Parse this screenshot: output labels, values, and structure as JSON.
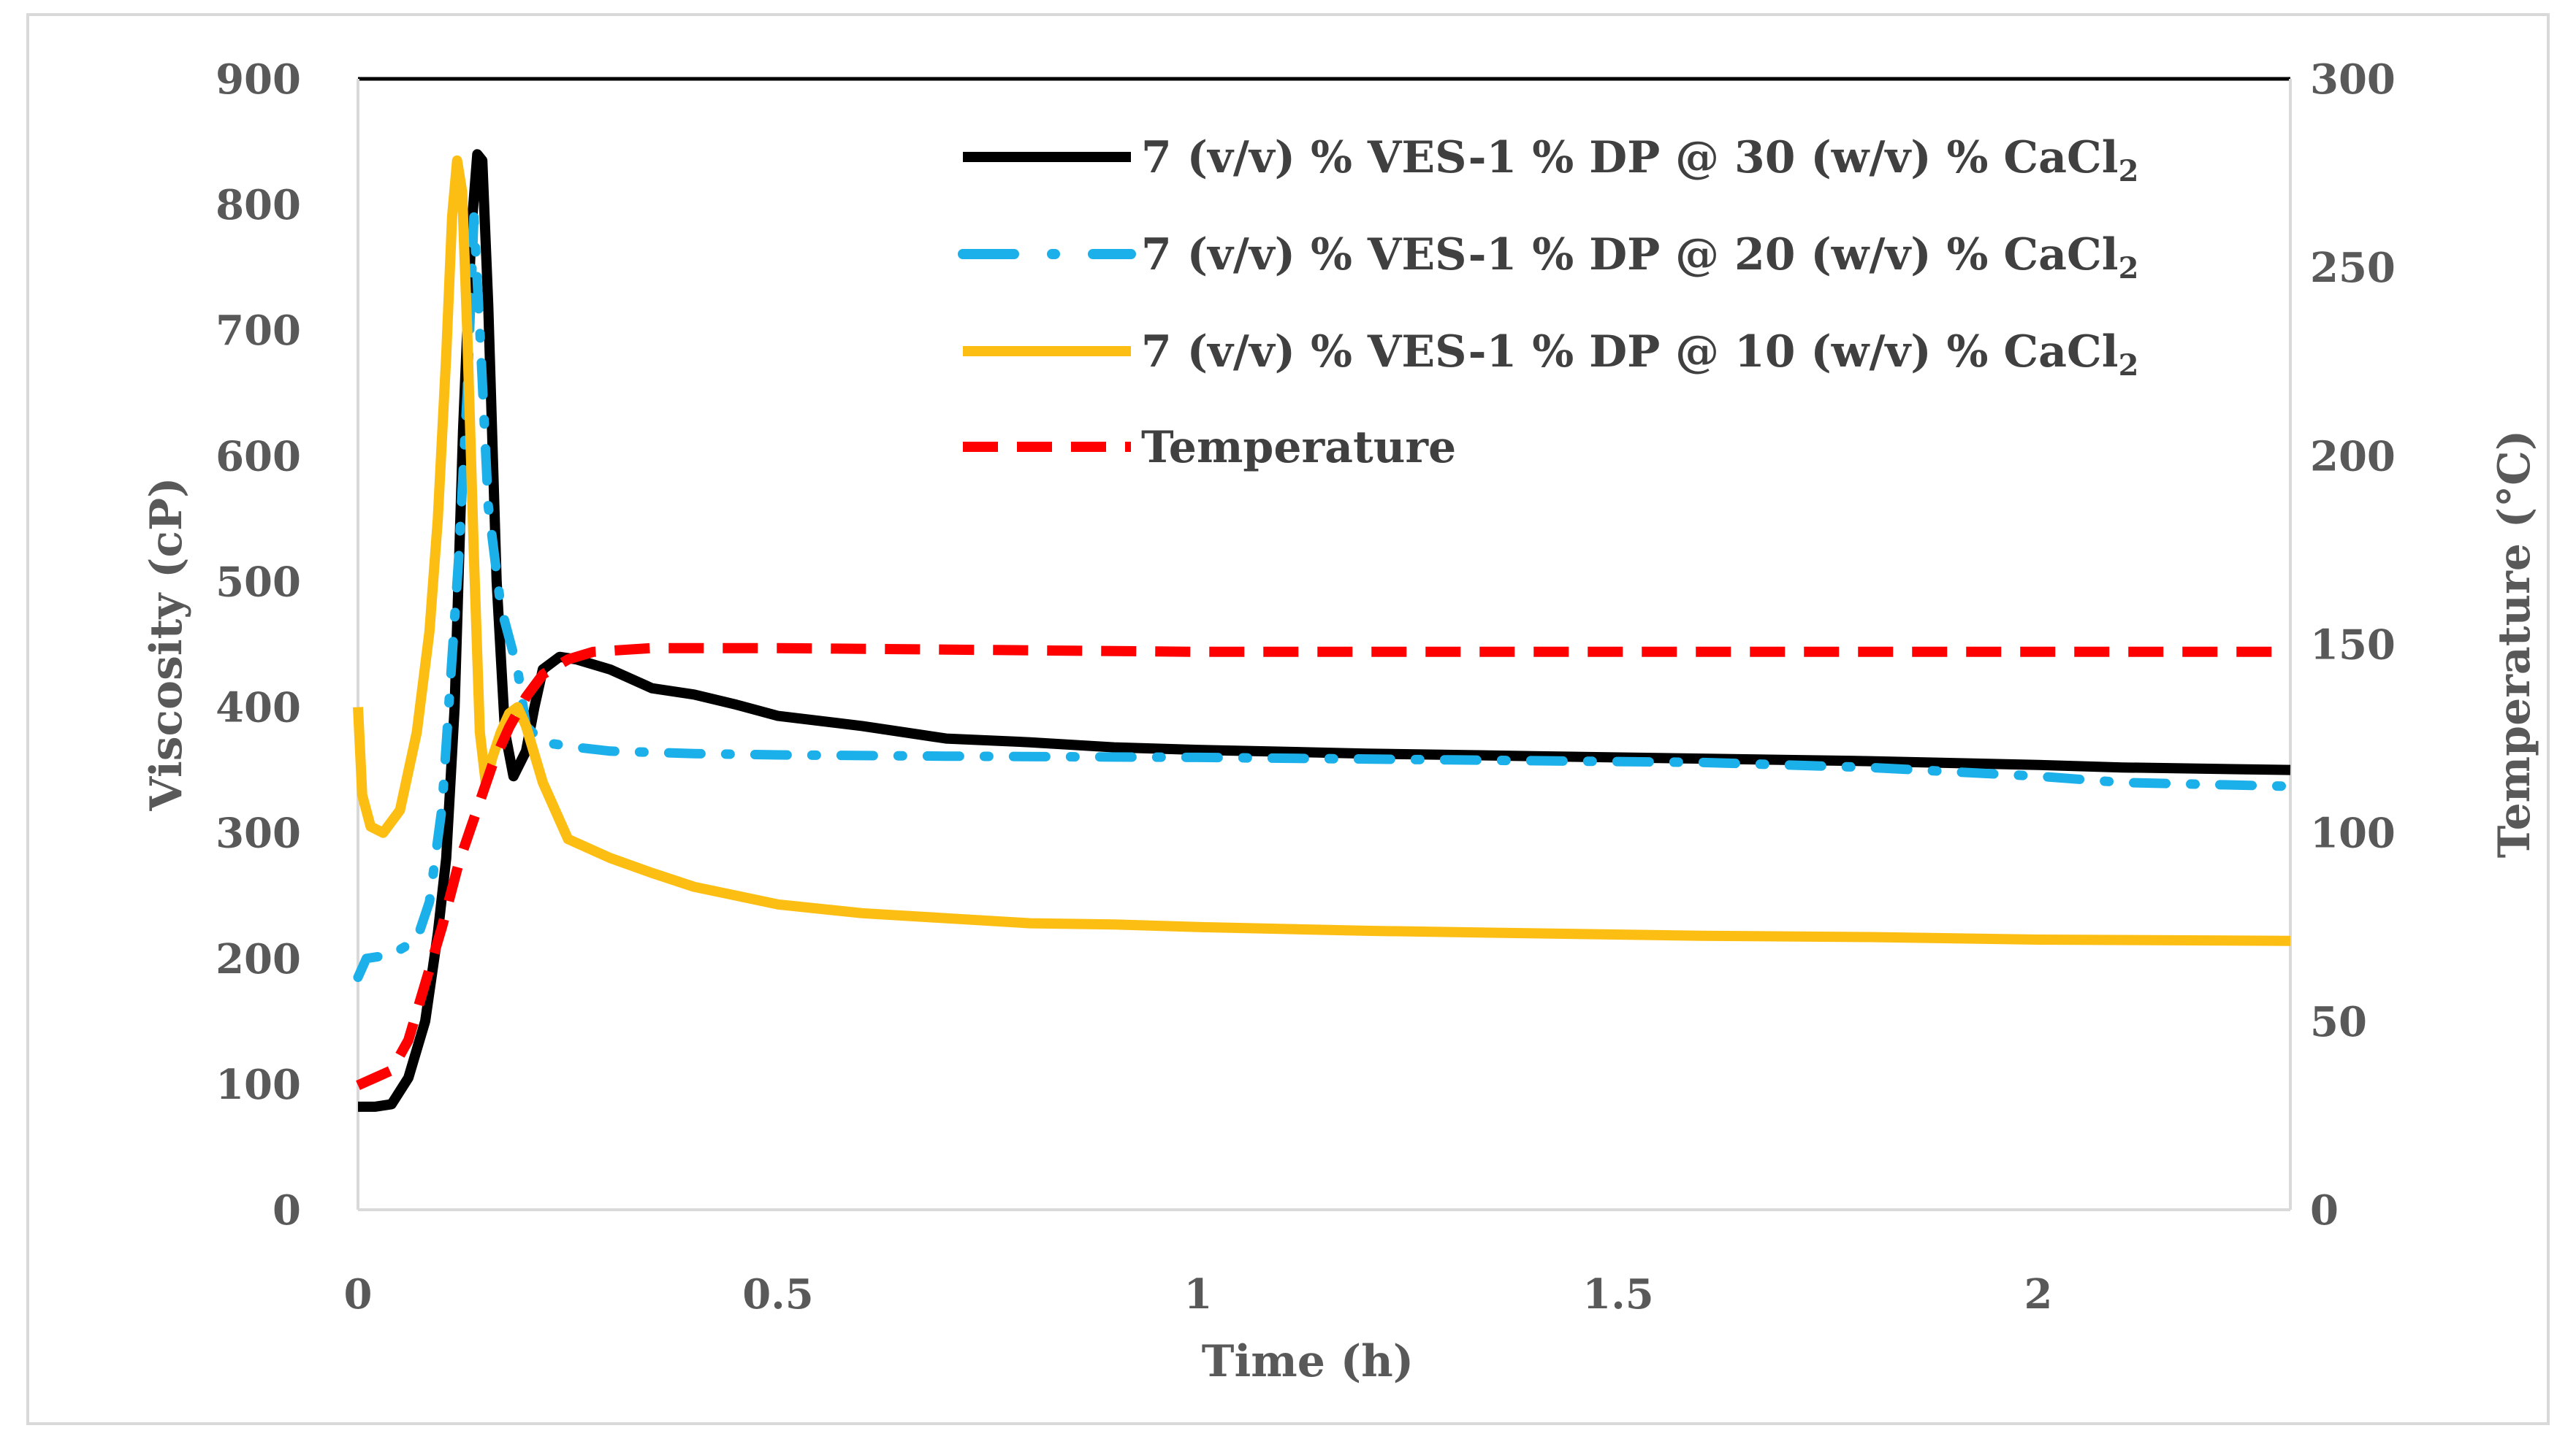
{
  "chart_data": {
    "type": "line",
    "xlabel": "Time (h)",
    "ylabel": "Viscosity (cP)",
    "y2label": "Temperature (°C)",
    "xlim": [
      0,
      2.3
    ],
    "ylim": [
      0,
      900
    ],
    "y2lim": [
      0,
      300
    ],
    "x_ticks": [
      "0",
      "0.5",
      "1",
      "1.5",
      "2"
    ],
    "y_ticks": [
      "0",
      "100",
      "200",
      "300",
      "400",
      "500",
      "600",
      "700",
      "800",
      "900"
    ],
    "y2_ticks": [
      "0",
      "50",
      "100",
      "150",
      "200",
      "250",
      "300"
    ],
    "grid": false,
    "legend_position": "top-right",
    "series": [
      {
        "name": "7 (v/v) % VES-1 % DP @ 30 (w/v) % CaCl",
        "name_subscript": "2",
        "axis": "left",
        "color": "#000000",
        "style": "solid",
        "points": [
          [
            0,
            82
          ],
          [
            0.02,
            82
          ],
          [
            0.04,
            84
          ],
          [
            0.06,
            105
          ],
          [
            0.08,
            150
          ],
          [
            0.095,
            220
          ],
          [
            0.105,
            280
          ],
          [
            0.115,
            400
          ],
          [
            0.125,
            620
          ],
          [
            0.135,
            780
          ],
          [
            0.142,
            840
          ],
          [
            0.148,
            835
          ],
          [
            0.155,
            720
          ],
          [
            0.165,
            500
          ],
          [
            0.175,
            380
          ],
          [
            0.185,
            345
          ],
          [
            0.2,
            365
          ],
          [
            0.21,
            400
          ],
          [
            0.22,
            430
          ],
          [
            0.24,
            440
          ],
          [
            0.26,
            438
          ],
          [
            0.3,
            430
          ],
          [
            0.35,
            415
          ],
          [
            0.4,
            410
          ],
          [
            0.45,
            402
          ],
          [
            0.5,
            393
          ],
          [
            0.6,
            385
          ],
          [
            0.7,
            375
          ],
          [
            0.8,
            372
          ],
          [
            0.9,
            368
          ],
          [
            1.0,
            366
          ],
          [
            1.2,
            363
          ],
          [
            1.4,
            361
          ],
          [
            1.6,
            359
          ],
          [
            1.8,
            357
          ],
          [
            2.0,
            354
          ],
          [
            2.1,
            352
          ],
          [
            2.3,
            350
          ]
        ]
      },
      {
        "name": "7 (v/v) % VES-1 % DP @ 20 (w/v) % CaCl",
        "name_subscript": "2",
        "axis": "left",
        "color": "#1cb0ea",
        "style": "dash-dot",
        "points": [
          [
            0,
            185
          ],
          [
            0.01,
            200
          ],
          [
            0.04,
            203
          ],
          [
            0.07,
            215
          ],
          [
            0.085,
            245
          ],
          [
            0.1,
            320
          ],
          [
            0.11,
            420
          ],
          [
            0.12,
            520
          ],
          [
            0.13,
            650
          ],
          [
            0.138,
            790
          ],
          [
            0.145,
            700
          ],
          [
            0.155,
            560
          ],
          [
            0.17,
            480
          ],
          [
            0.18,
            455
          ],
          [
            0.19,
            430
          ],
          [
            0.2,
            385
          ],
          [
            0.22,
            372
          ],
          [
            0.26,
            368
          ],
          [
            0.3,
            365
          ],
          [
            0.4,
            363
          ],
          [
            0.5,
            362
          ],
          [
            0.7,
            361
          ],
          [
            1.0,
            360
          ],
          [
            1.3,
            358
          ],
          [
            1.6,
            356
          ],
          [
            1.8,
            352
          ],
          [
            2.0,
            345
          ],
          [
            2.1,
            340
          ],
          [
            2.3,
            337
          ]
        ]
      },
      {
        "name": "7 (v/v) % VES-1 % DP @ 10 (w/v) % CaCl",
        "name_subscript": "2",
        "axis": "left",
        "color": "#fdbe14",
        "style": "solid",
        "points": [
          [
            0,
            400
          ],
          [
            0.005,
            330
          ],
          [
            0.015,
            305
          ],
          [
            0.03,
            300
          ],
          [
            0.05,
            318
          ],
          [
            0.07,
            380
          ],
          [
            0.085,
            460
          ],
          [
            0.095,
            550
          ],
          [
            0.105,
            680
          ],
          [
            0.112,
            790
          ],
          [
            0.118,
            835
          ],
          [
            0.124,
            810
          ],
          [
            0.13,
            700
          ],
          [
            0.138,
            520
          ],
          [
            0.145,
            380
          ],
          [
            0.152,
            340
          ],
          [
            0.16,
            360
          ],
          [
            0.17,
            380
          ],
          [
            0.18,
            395
          ],
          [
            0.19,
            400
          ],
          [
            0.2,
            385
          ],
          [
            0.22,
            340
          ],
          [
            0.25,
            295
          ],
          [
            0.3,
            280
          ],
          [
            0.35,
            268
          ],
          [
            0.4,
            257
          ],
          [
            0.45,
            250
          ],
          [
            0.5,
            243
          ],
          [
            0.6,
            236
          ],
          [
            0.7,
            232
          ],
          [
            0.8,
            228
          ],
          [
            0.9,
            227
          ],
          [
            1.0,
            225
          ],
          [
            1.2,
            222
          ],
          [
            1.4,
            220
          ],
          [
            1.6,
            218
          ],
          [
            1.8,
            217
          ],
          [
            2.0,
            215
          ],
          [
            2.3,
            214
          ]
        ]
      },
      {
        "name": "Temperature",
        "axis": "right",
        "color": "#ff0000",
        "style": "dashed",
        "points": [
          [
            0,
            33
          ],
          [
            0.02,
            35
          ],
          [
            0.04,
            37
          ],
          [
            0.06,
            45
          ],
          [
            0.08,
            60
          ],
          [
            0.1,
            75
          ],
          [
            0.12,
            92
          ],
          [
            0.14,
            105
          ],
          [
            0.16,
            118
          ],
          [
            0.18,
            128
          ],
          [
            0.2,
            136
          ],
          [
            0.22,
            142
          ],
          [
            0.25,
            146
          ],
          [
            0.28,
            148
          ],
          [
            0.35,
            149
          ],
          [
            0.5,
            149
          ],
          [
            1.0,
            148
          ],
          [
            1.5,
            148
          ],
          [
            2.0,
            148
          ],
          [
            2.3,
            148
          ]
        ]
      }
    ]
  }
}
